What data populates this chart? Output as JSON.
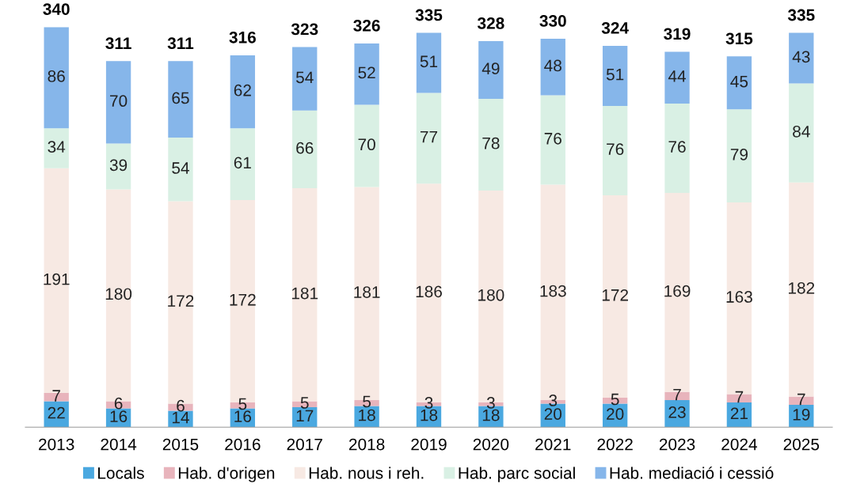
{
  "chart_data": {
    "type": "bar",
    "stacked": true,
    "data_labels": true,
    "grid": false,
    "legend": "bottom",
    "categories": [
      "2013",
      "2014",
      "2015",
      "2016",
      "2017",
      "2018",
      "2019",
      "2020",
      "2021",
      "2022",
      "2023",
      "2024",
      "2025"
    ],
    "series": [
      {
        "name": "Locals",
        "color": "#4aa8e0",
        "values": [
          22,
          16,
          14,
          16,
          17,
          18,
          18,
          18,
          20,
          20,
          23,
          21,
          19
        ]
      },
      {
        "name": "Hab. d'origen",
        "color": "#e8b4bc",
        "values": [
          7,
          6,
          6,
          5,
          5,
          5,
          3,
          3,
          3,
          5,
          7,
          7,
          7
        ]
      },
      {
        "name": "Hab. nous i reh.",
        "color": "#f7e9e3",
        "values": [
          191,
          180,
          172,
          172,
          181,
          181,
          186,
          180,
          183,
          172,
          169,
          163,
          182
        ]
      },
      {
        "name": "Hab. parc social",
        "color": "#d9f0e4",
        "values": [
          34,
          39,
          54,
          61,
          66,
          70,
          77,
          78,
          76,
          76,
          76,
          79,
          84
        ]
      },
      {
        "name": "Hab. mediació i cessió",
        "color": "#86b6ea",
        "values": [
          86,
          70,
          65,
          62,
          54,
          52,
          51,
          49,
          48,
          51,
          44,
          45,
          43
        ]
      }
    ],
    "totals": [
      "340",
      "311",
      "311",
      "316",
      "323",
      "326",
      "335",
      "328",
      "330",
      "324",
      "319",
      "315",
      "335"
    ]
  }
}
